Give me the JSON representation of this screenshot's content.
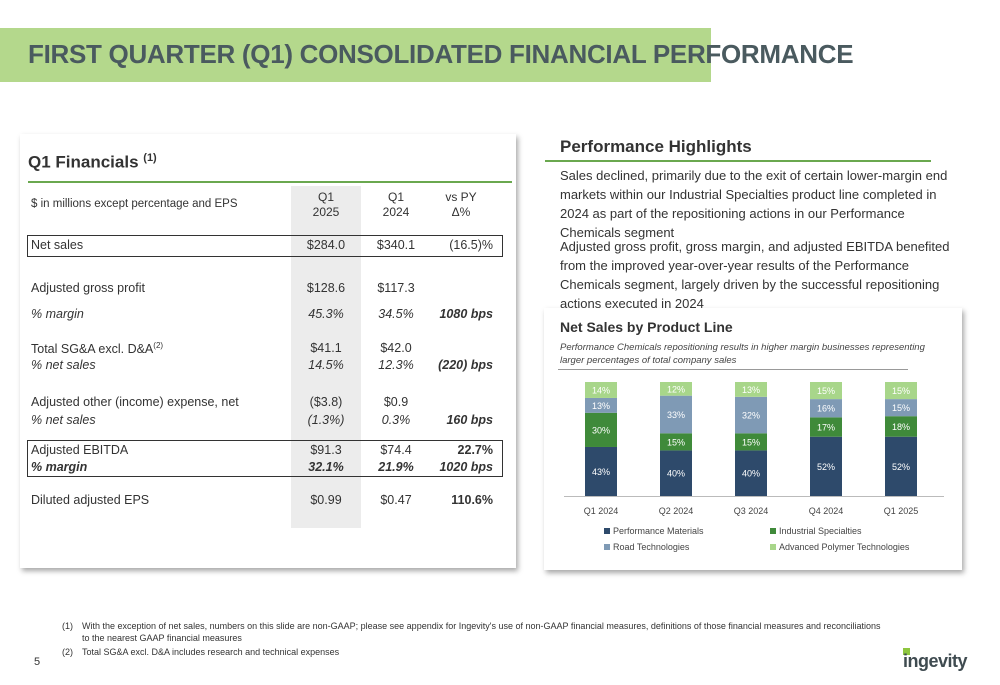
{
  "page": {
    "title": "FIRST QUARTER (Q1) CONSOLIDATED FINANCIAL PERFORMANCE",
    "page_number": "5",
    "logo": "ingevity"
  },
  "financials": {
    "title": "Q1 Financials",
    "title_sup": "(1)",
    "header": {
      "label": "$ in millions except percentage and EPS",
      "col1_a": "Q1",
      "col1_b": "2025",
      "col2_a": "Q1",
      "col2_b": "2024",
      "col3_a": "vs PY",
      "col3_b": "Δ%"
    },
    "rows": [
      {
        "label": "Net sales",
        "v1": "$284.0",
        "v2": "$340.1",
        "v3": "(16.5)%"
      },
      {
        "label": "Adjusted gross profit",
        "v1": "$128.6",
        "v2": "$117.3",
        "v3": ""
      },
      {
        "label": "% margin",
        "v1": "45.3%",
        "v2": "34.5%",
        "v3": "1080 bps"
      },
      {
        "label": "Total SG&A excl. D&A",
        "label_sup": "(2)",
        "v1": "$41.1",
        "v2": "$42.0",
        "v3": ""
      },
      {
        "label": "% net sales",
        "v1": "14.5%",
        "v2": "12.3%",
        "v3": "(220) bps"
      },
      {
        "label": "Adjusted other (income) expense, net",
        "v1": "($3.8)",
        "v2": "$0.9",
        "v3": ""
      },
      {
        "label": "% net sales",
        "v1": "(1.3%)",
        "v2": "0.3%",
        "v3": "160 bps"
      },
      {
        "label": "Adjusted EBITDA",
        "v1": "$91.3",
        "v2": "$74.4",
        "v3": "22.7%"
      },
      {
        "label": "% margin",
        "v1": "32.1%",
        "v2": "21.9%",
        "v3": "1020 bps"
      },
      {
        "label": "Diluted adjusted EPS",
        "v1": "$0.99",
        "v2": "$0.47",
        "v3": "110.6%"
      }
    ]
  },
  "highlights": {
    "title": "Performance Highlights",
    "p1": "Sales declined, primarily due to the exit of certain lower-margin end markets within our Industrial Specialties product line completed in 2024 as part of the repositioning actions in our Performance Chemicals segment",
    "p2": "Adjusted gross profit, gross margin, and adjusted EBITDA benefited from the improved year-over-year results of the Performance Chemicals segment, largely driven by the successful repositioning actions executed in 2024"
  },
  "chart_data": {
    "type": "bar",
    "stacked": true,
    "title": "Net Sales by Product Line",
    "subtitle": "Performance Chemicals repositioning results in higher margin businesses representing larger percentages of total company sales",
    "categories": [
      "Q1 2024",
      "Q2 2024",
      "Q3 2024",
      "Q4 2024",
      "Q1 2025"
    ],
    "series": [
      {
        "name": "Performance Materials",
        "values": [
          43,
          40,
          40,
          52,
          52
        ],
        "color": "#2e4a6b"
      },
      {
        "name": "Industrial Specialties",
        "values": [
          30,
          15,
          15,
          17,
          18
        ],
        "color": "#3f8a3a"
      },
      {
        "name": "Road Technologies",
        "values": [
          13,
          33,
          32,
          16,
          15
        ],
        "color": "#7f9ab5"
      },
      {
        "name": "Advanced Polymer Technologies",
        "values": [
          14,
          12,
          13,
          15,
          15
        ],
        "color": "#a8d68a"
      }
    ],
    "unit": "%",
    "legend_position": "bottom",
    "grid": false
  },
  "footnotes": [
    {
      "num": "(1)",
      "text": "With the exception of net sales, numbers on this slide are non-GAAP; please see appendix for Ingevity's use of non-GAAP financial measures, definitions of those financial measures and reconciliations to the nearest GAAP financial measures"
    },
    {
      "num": "(2)",
      "text": "Total SG&A excl. D&A includes research and technical expenses"
    }
  ]
}
